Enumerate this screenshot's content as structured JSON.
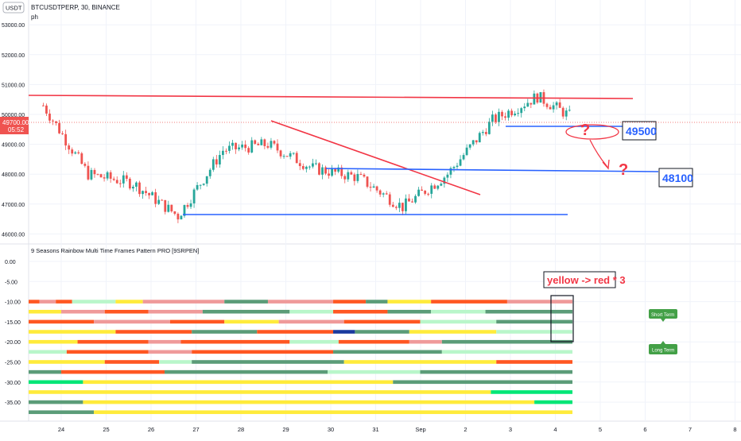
{
  "header": {
    "currency": "USDT",
    "symbol_line": "BTCUSDTPERP, 30, BINANCE",
    "indicator_short": "ph"
  },
  "price_axis": {
    "ticks": [
      "46000.00",
      "47000.00",
      "48000.00",
      "49000.00",
      "50000.00",
      "51000.00",
      "52000.00",
      "53000.00"
    ],
    "last_price": "49700.00",
    "countdown": "05:52"
  },
  "annotations": {
    "level_upper": "49500",
    "level_lower": "48100",
    "question_mark": "?",
    "pattern_note": "yellow -> red * 3"
  },
  "lower_pane": {
    "title": "9 Seasons Rainbow Multi Time Frames Pattern PRO [9SRPEN]",
    "ticks": [
      "0.00",
      "-5.00",
      "-10.00",
      "-15.00",
      "-20.00",
      "-25.00",
      "-30.00",
      "-35.00"
    ],
    "labels": {
      "short_term": "Short Term",
      "long_term": "Long Term"
    }
  },
  "time_axis": {
    "labels": [
      "24",
      "25",
      "26",
      "27",
      "28",
      "29",
      "30",
      "31",
      "Sep",
      "2",
      "3",
      "4",
      "5",
      "6",
      "7",
      "8"
    ]
  },
  "colors": {
    "up": "#26a69a",
    "down": "#ef5350",
    "trend_red": "#f23645",
    "level_blue": "#2962ff",
    "rainbow": {
      "yellow": "#ffeb3b",
      "orange_red": "#ff5722",
      "salmon": "#ef9a9a",
      "light_green": "#b9f6ca",
      "teal_green": "#5b9c78",
      "dark_blue": "#1a3a9e",
      "bright_green": "#00e676"
    }
  },
  "chart_data": [
    {
      "type": "candlestick",
      "title": "BTCUSDTPERP, 30, BINANCE",
      "y_range": [
        45800,
        53300
      ],
      "last_price": 49700,
      "key_closes": [
        {
          "x": "23 Aug",
          "y": 50300
        },
        {
          "x": "24 Aug",
          "y": 48000
        },
        {
          "x": "25 Aug",
          "y": 47700
        },
        {
          "x": "26 Aug",
          "y": 46600
        },
        {
          "x": "27 Aug",
          "y": 48800
        },
        {
          "x": "28 Aug",
          "y": 49000
        },
        {
          "x": "29 Aug",
          "y": 48200
        },
        {
          "x": "30 Aug",
          "y": 47900
        },
        {
          "x": "31 Aug",
          "y": 46900
        },
        {
          "x": "1 Sep",
          "y": 48000
        },
        {
          "x": "2 Sep",
          "y": 49800
        },
        {
          "x": "3 Sep",
          "y": 50600
        },
        {
          "x": "4 Sep",
          "y": 49700
        }
      ],
      "drawings": [
        {
          "kind": "trendline",
          "color": "red",
          "from": {
            "x": "23 Aug",
            "y": 50600
          },
          "to": {
            "x": "6 Sep",
            "y": 50500
          }
        },
        {
          "kind": "trendline",
          "color": "red",
          "from": {
            "x": "28.7 Aug",
            "y": 49750
          },
          "to": {
            "x": "2 Sep",
            "y": 47250
          }
        },
        {
          "kind": "horizontal",
          "color": "blue",
          "y": 49500,
          "label": "49500"
        },
        {
          "kind": "horizontal",
          "color": "blue",
          "y": 48100,
          "label": "48100"
        },
        {
          "kind": "horizontal",
          "color": "blue",
          "y": 46550
        }
      ]
    },
    {
      "type": "heatmap",
      "title": "9 Seasons Rainbow Multi Time Frames Pattern PRO [9SRPEN]",
      "rows": [
        {
          "y": -10,
          "segments": [
            [
              "orange_red",
              0,
              2
            ],
            [
              "salmon",
              2,
              5
            ],
            [
              "orange_red",
              5,
              8
            ],
            [
              "light_green",
              8,
              16
            ],
            [
              "yellow",
              16,
              21
            ],
            [
              "salmon",
              21,
              36
            ],
            [
              "teal_green",
              36,
              44
            ],
            [
              "salmon",
              44,
              56
            ],
            [
              "orange_red",
              56,
              62
            ],
            [
              "teal_green",
              62,
              66
            ],
            [
              "yellow",
              66,
              74
            ],
            [
              "orange_red",
              74,
              88
            ],
            [
              "salmon",
              88,
              100
            ]
          ]
        },
        {
          "y": -12.5,
          "segments": [
            [
              "yellow",
              0,
              6
            ],
            [
              "salmon",
              6,
              14
            ],
            [
              "orange_red",
              14,
              22
            ],
            [
              "salmon",
              22,
              32
            ],
            [
              "teal_green",
              32,
              48
            ],
            [
              "light_green",
              48,
              56
            ],
            [
              "orange_red",
              56,
              66
            ],
            [
              "teal_green",
              66,
              74
            ],
            [
              "light_green",
              74,
              84
            ],
            [
              "teal_green",
              84,
              100
            ]
          ]
        },
        {
          "y": -15,
          "segments": [
            [
              "orange_red",
              0,
              12
            ],
            [
              "salmon",
              12,
              26
            ],
            [
              "orange_red",
              26,
              36
            ],
            [
              "yellow",
              36,
              46
            ],
            [
              "salmon",
              46,
              58
            ],
            [
              "orange_red",
              58,
              72
            ],
            [
              "light_green",
              72,
              86
            ],
            [
              "teal_green",
              86,
              100
            ]
          ]
        },
        {
          "y": -17.5,
          "segments": [
            [
              "yellow",
              0,
              16
            ],
            [
              "orange_red",
              16,
              30
            ],
            [
              "teal_green",
              30,
              42
            ],
            [
              "orange_red",
              42,
              56
            ],
            [
              "dark_blue",
              56,
              60
            ],
            [
              "teal_green",
              60,
              70
            ],
            [
              "yellow",
              70,
              86
            ],
            [
              "light_green",
              86,
              100
            ]
          ]
        },
        {
          "y": -20,
          "segments": [
            [
              "yellow",
              0,
              9
            ],
            [
              "orange_red",
              9,
              22
            ],
            [
              "salmon",
              22,
              28
            ],
            [
              "orange_red",
              28,
              48
            ],
            [
              "light_green",
              48,
              57
            ],
            [
              "orange_red",
              57,
              70
            ],
            [
              "salmon",
              70,
              76
            ],
            [
              "teal_green",
              76,
              100
            ]
          ]
        },
        {
          "y": -22.5,
          "segments": [
            [
              "light_green",
              0,
              7
            ],
            [
              "orange_red",
              7,
              22
            ],
            [
              "salmon",
              22,
              30
            ],
            [
              "orange_red",
              30,
              56
            ],
            [
              "teal_green",
              56,
              76
            ],
            [
              "light_green",
              76,
              100
            ]
          ]
        },
        {
          "y": -25,
          "segments": [
            [
              "yellow",
              0,
              14
            ],
            [
              "orange_red",
              14,
              24
            ],
            [
              "light_green",
              24,
              30
            ],
            [
              "teal_green",
              30,
              58
            ],
            [
              "yellow",
              58,
              86
            ],
            [
              "orange_red",
              86,
              100
            ]
          ]
        },
        {
          "y": -27.5,
          "segments": [
            [
              "teal_green",
              0,
              6
            ],
            [
              "orange_red",
              6,
              25
            ],
            [
              "teal_green",
              25,
              55
            ],
            [
              "light_green",
              55,
              72
            ],
            [
              "teal_green",
              72,
              100
            ]
          ]
        },
        {
          "y": -30,
          "segments": [
            [
              "bright_green",
              0,
              10
            ],
            [
              "yellow",
              10,
              67
            ],
            [
              "teal_green",
              67,
              100
            ]
          ]
        },
        {
          "y": -32.5,
          "segments": [
            [
              "yellow",
              0,
              85
            ],
            [
              "bright_green",
              85,
              100
            ]
          ]
        },
        {
          "y": -35,
          "segments": [
            [
              "teal_green",
              0,
              10
            ],
            [
              "yellow",
              10,
              93
            ],
            [
              "bright_green",
              93,
              100
            ]
          ]
        },
        {
          "y": -37.5,
          "segments": [
            [
              "teal_green",
              0,
              12
            ],
            [
              "yellow",
              12,
              100
            ]
          ]
        }
      ]
    }
  ]
}
